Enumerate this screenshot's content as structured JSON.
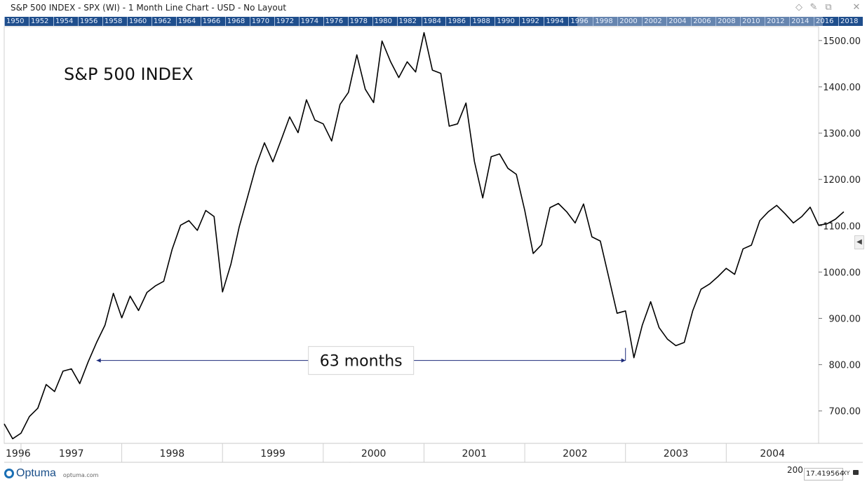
{
  "window": {
    "title": "S&P 500 INDEX - SPX (WI) - 1 Month Line Chart - USD - No Layout",
    "controls": [
      {
        "icon": "diamond-icon",
        "glyph": "◇"
      },
      {
        "icon": "pin-icon",
        "glyph": "✎"
      },
      {
        "icon": "restore-icon",
        "glyph": "⧉"
      },
      {
        "icon": "close-icon",
        "glyph": "✕"
      }
    ]
  },
  "overview_years": [
    "1950",
    "1952",
    "1954",
    "1956",
    "1958",
    "1960",
    "1962",
    "1964",
    "1966",
    "1968",
    "1970",
    "1972",
    "1974",
    "1976",
    "1978",
    "1980",
    "1982",
    "1984",
    "1986",
    "1988",
    "1990",
    "1992",
    "1994",
    "1996",
    "1998",
    "2000",
    "2002",
    "2004",
    "2006",
    "2008",
    "2010",
    "2012",
    "2014",
    "2016",
    "2018"
  ],
  "chart_data": {
    "type": "line",
    "title": "S&P 500 INDEX",
    "x_unit": "month",
    "x_ticks": [
      "1996",
      "1997",
      "1998",
      "1999",
      "2000",
      "2001",
      "2002",
      "2003",
      "2004"
    ],
    "y_ticks": [
      "700.00",
      "800.00",
      "900.00",
      "1000.00",
      "1100.00",
      "1200.00",
      "1300.00",
      "1400.00",
      "1500.00"
    ],
    "ylim": [
      630,
      1530
    ],
    "xlim": [
      "1996-11",
      "2004-12"
    ],
    "grid": false,
    "series": [
      {
        "values": [
          [
            "1996-11",
            672
          ],
          [
            "1996-12",
            640
          ],
          [
            "1997-01",
            652
          ],
          [
            "1997-02",
            688
          ],
          [
            "1997-03",
            706
          ],
          [
            "1997-04",
            757
          ],
          [
            "1997-05",
            742
          ],
          [
            "1997-06",
            786
          ],
          [
            "1997-07",
            791
          ],
          [
            "1997-08",
            759
          ],
          [
            "1997-09",
            806
          ],
          [
            "1997-10",
            848
          ],
          [
            "1997-11",
            885
          ],
          [
            "1997-12",
            954
          ],
          [
            "1998-01",
            901
          ],
          [
            "1998-02",
            948
          ],
          [
            "1998-03",
            917
          ],
          [
            "1998-04",
            956
          ],
          [
            "1998-05",
            970
          ],
          [
            "1998-06",
            980
          ],
          [
            "1998-07",
            1049
          ],
          [
            "1998-08",
            1101
          ],
          [
            "1998-09",
            1111
          ],
          [
            "1998-10",
            1090
          ],
          [
            "1998-11",
            1133
          ],
          [
            "1998-12",
            1120
          ],
          [
            "1999-01",
            957
          ],
          [
            "1999-02",
            1017
          ],
          [
            "1999-03",
            1098
          ],
          [
            "1999-04",
            1163
          ],
          [
            "1999-05",
            1229
          ],
          [
            "1999-06",
            1279
          ],
          [
            "1999-07",
            1238
          ],
          [
            "1999-08",
            1286
          ],
          [
            "1999-09",
            1335
          ],
          [
            "1999-10",
            1301
          ],
          [
            "1999-11",
            1372
          ],
          [
            "1999-12",
            1328
          ],
          [
            "2000-01",
            1320
          ],
          [
            "2000-02",
            1283
          ],
          [
            "2000-03",
            1362
          ],
          [
            "2000-04",
            1388
          ],
          [
            "2000-05",
            1469
          ],
          [
            "2000-06",
            1395
          ],
          [
            "2000-07",
            1366
          ],
          [
            "2000-08",
            1499
          ],
          [
            "2000-09",
            1455
          ],
          [
            "2000-10",
            1420
          ],
          [
            "2000-11",
            1454
          ],
          [
            "2000-12",
            1432
          ],
          [
            "2001-01",
            1517
          ],
          [
            "2001-02",
            1436
          ],
          [
            "2001-03",
            1429
          ],
          [
            "2001-04",
            1315
          ],
          [
            "2001-05",
            1320
          ],
          [
            "2001-06",
            1365
          ],
          [
            "2001-07",
            1239
          ],
          [
            "2001-08",
            1160
          ],
          [
            "2001-09",
            1249
          ],
          [
            "2001-10",
            1255
          ],
          [
            "2001-11",
            1224
          ],
          [
            "2001-12",
            1211
          ],
          [
            "2002-01",
            1133
          ],
          [
            "2002-02",
            1040
          ],
          [
            "2002-03",
            1059
          ],
          [
            "2002-04",
            1139
          ],
          [
            "2002-05",
            1148
          ],
          [
            "2002-06",
            1130
          ],
          [
            "2002-07",
            1106
          ],
          [
            "2002-08",
            1147
          ],
          [
            "2002-09",
            1076
          ],
          [
            "2002-10",
            1067
          ],
          [
            "2002-11",
            989
          ],
          [
            "2002-12",
            911
          ],
          [
            "2003-01",
            916
          ],
          [
            "2003-02",
            815
          ],
          [
            "2003-03",
            885
          ],
          [
            "2003-04",
            936
          ],
          [
            "2003-05",
            880
          ],
          [
            "2003-06",
            855
          ],
          [
            "2003-07",
            841
          ],
          [
            "2003-08",
            848
          ],
          [
            "2003-09",
            916
          ],
          [
            "2003-10",
            963
          ],
          [
            "2003-11",
            974
          ],
          [
            "2003-12",
            990
          ],
          [
            "2004-01",
            1008
          ],
          [
            "2004-02",
            995
          ],
          [
            "2004-03",
            1050
          ],
          [
            "2004-04",
            1058
          ],
          [
            "2004-05",
            1111
          ],
          [
            "2004-06",
            1130
          ],
          [
            "2004-07",
            1144
          ],
          [
            "2004-08",
            1126
          ],
          [
            "2004-09",
            1106
          ],
          [
            "2004-10",
            1120
          ],
          [
            "2004-11",
            1140
          ],
          [
            "2004-12",
            1101
          ],
          [
            "2005-01",
            1104
          ],
          [
            "2005-02",
            1114
          ],
          [
            "2005-03",
            1130
          ]
        ]
      }
    ],
    "annotation": {
      "label": "63 months",
      "start": "1997-10",
      "end": "2003-01",
      "y": 809
    }
  },
  "colors": {
    "line": "#000000",
    "arrow": "#1b2a7a",
    "overview_bar": "#1f4e8c"
  },
  "footer": {
    "logo_text": "Optuma",
    "logo_url": "optuma.com",
    "cut_label": "200",
    "readout": "17.419564",
    "xy_label": "XY"
  }
}
